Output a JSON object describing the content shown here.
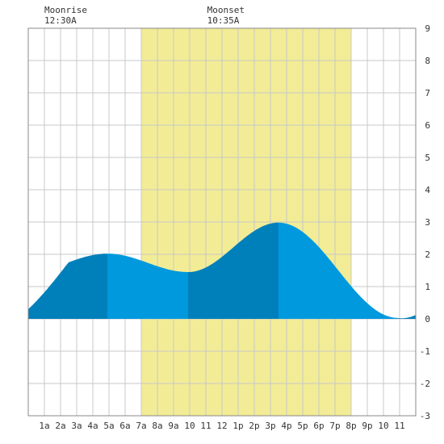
{
  "chart_data": {
    "type": "area",
    "title": "",
    "xlabel": "",
    "ylabel": "",
    "xlim": [
      0,
      24
    ],
    "ylim": [
      -3,
      9
    ],
    "grid": true,
    "x_ticks": [
      {
        "x": 1,
        "label": "1a"
      },
      {
        "x": 2,
        "label": "2a"
      },
      {
        "x": 3,
        "label": "3a"
      },
      {
        "x": 4,
        "label": "4a"
      },
      {
        "x": 5,
        "label": "5a"
      },
      {
        "x": 6,
        "label": "6a"
      },
      {
        "x": 7,
        "label": "7a"
      },
      {
        "x": 8,
        "label": "8a"
      },
      {
        "x": 9,
        "label": "9a"
      },
      {
        "x": 10,
        "label": "10"
      },
      {
        "x": 11,
        "label": "11"
      },
      {
        "x": 12,
        "label": "12"
      },
      {
        "x": 13,
        "label": "1p"
      },
      {
        "x": 14,
        "label": "2p"
      },
      {
        "x": 15,
        "label": "3p"
      },
      {
        "x": 16,
        "label": "4p"
      },
      {
        "x": 17,
        "label": "5p"
      },
      {
        "x": 18,
        "label": "6p"
      },
      {
        "x": 19,
        "label": "7p"
      },
      {
        "x": 20,
        "label": "8p"
      },
      {
        "x": 21,
        "label": "9p"
      },
      {
        "x": 22,
        "label": "10"
      },
      {
        "x": 23,
        "label": "11"
      }
    ],
    "y_ticks": [
      9,
      8,
      7,
      6,
      5,
      4,
      3,
      2,
      1,
      0,
      -1,
      -2,
      -3
    ],
    "daylight": {
      "start": 7,
      "end": 20
    },
    "annotations": [
      {
        "label": "Moonrise",
        "time": "12:30A",
        "x": 0.5
      },
      {
        "label": "Moonset",
        "time": "10:35A",
        "x": 10.58
      }
    ],
    "extremes": [
      {
        "kind": "high",
        "x": 4.9,
        "y": 2.02
      },
      {
        "kind": "low",
        "x": 9.9,
        "y": 1.45
      },
      {
        "kind": "high",
        "x": 15.5,
        "y": 2.98
      },
      {
        "kind": "low",
        "x": 22.9,
        "y": 0.03
      }
    ],
    "series": [
      {
        "x": [
          0,
          24
        ],
        "y_start": 0.3,
        "y_end": 0.12
      }
    ],
    "colors": {
      "daylight": "#f2ec96",
      "tide_light": "#0099dd",
      "tide_dark": "#0080bb",
      "grid": "#c8c8c8"
    }
  }
}
